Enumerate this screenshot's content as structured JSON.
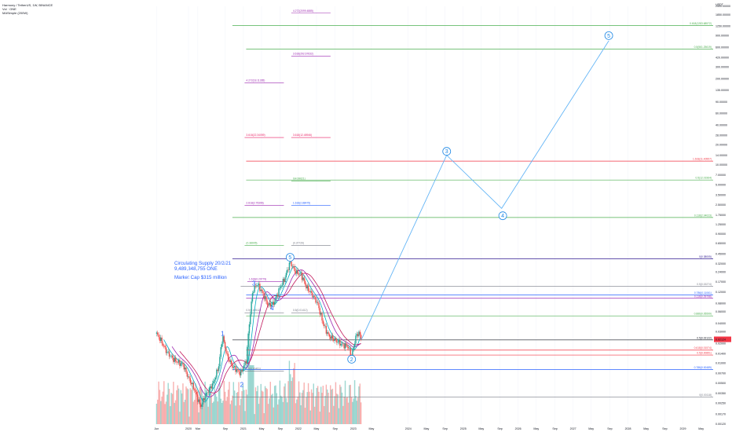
{
  "header": {
    "symbol": "Harmony / TetherUS, 1W, BINANCE",
    "vol": "Vol · ONE",
    "ma": "MASimple (200W)"
  },
  "annotations": {
    "supply_line1": "Circulating Supply 20/2/21",
    "supply_line2": "9,489,348,755 ONE",
    "market_cap": "Market Cap $315 million"
  },
  "colors": {
    "up": "#26a69a",
    "down": "#ef5350",
    "projection": "#64b5f6",
    "wave_label": "#2962ff",
    "ma": "#9c27b0",
    "ma_crimson": "#c2185b",
    "price_label": "#f23645"
  },
  "chart_data": {
    "type": "candlestick",
    "scale": "log",
    "currency": "USDT",
    "yticks": [
      "2500.00000",
      "1850.00000",
      "1250.00000",
      "900.00000",
      "600.00000",
      "420.00000",
      "300.00000",
      "200.00000",
      "135.00000",
      "90.00000",
      "60.00000",
      "40.00000",
      "28.00000",
      "20.00000",
      "14.00000",
      "10.00000",
      "7.00000",
      "5.00000",
      "3.50000",
      "2.50000",
      "1.75000",
      "1.25000",
      "0.90000",
      "0.65000",
      "0.45000",
      "0.32000",
      "0.24000",
      "0.17000",
      "0.12000",
      "0.08000",
      "0.06000",
      "0.04000",
      "0.03000",
      "0.02000",
      "0.01400",
      "0.01000",
      "0.00700",
      "0.00500",
      "0.00350",
      "0.00250",
      "0.00170",
      "0.00120"
    ],
    "ytick_values": [
      2500,
      1850,
      1250,
      900,
      600,
      420,
      300,
      200,
      135,
      90,
      60,
      40,
      28,
      20,
      14,
      10,
      7,
      5,
      3.5,
      2.5,
      1.75,
      1.25,
      0.9,
      0.65,
      0.45,
      0.32,
      0.24,
      0.17,
      0.12,
      0.08,
      0.06,
      0.04,
      0.03,
      0.02,
      0.014,
      0.01,
      0.007,
      0.005,
      0.0035,
      0.0025,
      0.0017,
      0.0012
    ],
    "xticks": [
      "Jun",
      "2020",
      "Mar",
      "Sep",
      "2021",
      "May",
      "Sep",
      "2022",
      "May",
      "Sep",
      "2023",
      "May",
      "2024",
      "May",
      "Sep",
      "2025",
      "May",
      "Sep",
      "2026",
      "May",
      "Sep",
      "2027",
      "May",
      "Sep",
      "2028",
      "May",
      "Sep",
      "2029",
      "May"
    ],
    "xtick_values": [
      2019.42,
      2020.0,
      2020.17,
      2020.67,
      2021.0,
      2021.33,
      2021.67,
      2022.0,
      2022.33,
      2022.67,
      2023.0,
      2023.33,
      2024.0,
      2024.33,
      2024.67,
      2025.0,
      2025.33,
      2025.67,
      2026.0,
      2026.33,
      2026.67,
      2027.0,
      2027.33,
      2027.67,
      2028.0,
      2028.33,
      2028.67,
      2029.0,
      2029.33
    ],
    "price_path": [
      [
        2019.42,
        0.028
      ],
      [
        2019.5,
        0.022
      ],
      [
        2019.6,
        0.015
      ],
      [
        2019.75,
        0.011
      ],
      [
        2019.9,
        0.0095
      ],
      [
        2020.0,
        0.006
      ],
      [
        2020.1,
        0.0042
      ],
      [
        2020.22,
        0.0022
      ],
      [
        2020.3,
        0.0032
      ],
      [
        2020.45,
        0.005
      ],
      [
        2020.55,
        0.009
      ],
      [
        2020.62,
        0.026
      ],
      [
        2020.7,
        0.013
      ],
      [
        2020.8,
        0.009
      ],
      [
        2020.95,
        0.007
      ],
      [
        2021.05,
        0.011
      ],
      [
        2021.1,
        0.035
      ],
      [
        2021.17,
        0.125
      ],
      [
        2021.25,
        0.16
      ],
      [
        2021.35,
        0.115
      ],
      [
        2021.45,
        0.075
      ],
      [
        2021.55,
        0.08
      ],
      [
        2021.65,
        0.13
      ],
      [
        2021.75,
        0.19
      ],
      [
        2021.85,
        0.34
      ],
      [
        2021.95,
        0.24
      ],
      [
        2022.05,
        0.22
      ],
      [
        2022.15,
        0.14
      ],
      [
        2022.25,
        0.11
      ],
      [
        2022.35,
        0.08
      ],
      [
        2022.45,
        0.04
      ],
      [
        2022.55,
        0.026
      ],
      [
        2022.65,
        0.023
      ],
      [
        2022.8,
        0.019
      ],
      [
        2022.9,
        0.018
      ],
      [
        2022.97,
        0.013
      ],
      [
        2023.05,
        0.026
      ],
      [
        2023.1,
        0.029
      ],
      [
        2023.15,
        0.023
      ]
    ],
    "projection": [
      [
        2023.15,
        0.023
      ],
      [
        2024.7,
        14.0
      ],
      [
        2025.7,
        2.2
      ],
      [
        2027.65,
        750.0
      ]
    ],
    "waves_blue": [
      {
        "label": "1",
        "x": 2020.62,
        "y": 0.026
      },
      {
        "label": "2",
        "x": 2020.97,
        "y": 0.0044
      },
      {
        "label": "3",
        "x": 2021.19,
        "y": 0.15
      },
      {
        "label": "4",
        "x": 2021.52,
        "y": 0.063
      },
      {
        "label": "5",
        "x": 2021.85,
        "y": 0.4
      },
      {
        "label": "2",
        "x": 2022.97,
        "y": 0.0115
      },
      {
        "label": "3",
        "x": 2024.7,
        "y": 16.0
      },
      {
        "label": "4",
        "x": 2025.72,
        "y": 1.7
      },
      {
        "label": "5",
        "x": 2027.65,
        "y": 900.0
      }
    ],
    "fib_levels": [
      {
        "label": "0.618(1283.68572)",
        "value": 1283,
        "x1": 2020.8,
        "color": "#4caf50"
      },
      {
        "label": "0.5(561.25619)",
        "value": 561,
        "x1": 2021.05,
        "color": "#4caf50"
      },
      {
        "label": "1.618(11.40957)",
        "value": 11.4,
        "x1": 2021.05,
        "color": "#f23645"
      },
      {
        "label": "0.5(12.01964)",
        "value": 5.9,
        "x1": 2021.05,
        "color": "#4caf50"
      },
      {
        "label": "0.118(2.04023)",
        "value": 1.6,
        "x1": 2020.8,
        "color": "#4caf50"
      },
      {
        "label": "0(0.38005)",
        "value": 0.38,
        "x1": 2020.8,
        "color": "#311b92"
      },
      {
        "label": "0.5(0.15274)",
        "value": 0.145,
        "x1": 2020.95,
        "color": "#787b86"
      },
      {
        "label": "0.786(0.11061)",
        "value": 0.108,
        "x1": 2021.05,
        "color": "#2962ff"
      },
      {
        "label": "0.118(0.09798)",
        "value": 0.096,
        "x1": 2021.05,
        "color": "#9c27b0"
      },
      {
        "label": "0.886(0.05599)",
        "value": 0.052,
        "x1": 2021.05,
        "color": "#4caf50"
      },
      {
        "label": "0.5(0.02122)",
        "value": 0.0225,
        "x1": 2020.8,
        "color": "#131722"
      },
      {
        "label": "0.618(0.01574)",
        "value": 0.0158,
        "x1": 2021.05,
        "color": "#f23645"
      },
      {
        "label": "0.5(0.00851)",
        "value": 0.0133,
        "x1": 2021.05,
        "color": "#f23645"
      },
      {
        "label": "0.786(0.00489)",
        "value": 0.008,
        "x1": 2020.8,
        "color": "#2962ff"
      },
      {
        "label": "0(0.00118)",
        "value": 0.0031,
        "x1": 2020.8,
        "color": "#787b86"
      }
    ],
    "fib_left_labels": [
      {
        "label": "4.272(2099.4885)",
        "value": 2050,
        "x": 2021.9,
        "color": "#9c27b0"
      },
      {
        "label": "3.618(292.67632)",
        "value": 460,
        "x": 2021.9,
        "color": "#9c27b0"
      },
      {
        "label": "4.272(18.11285)",
        "value": 180,
        "x": 2021.05,
        "color": "#9c27b0"
      },
      {
        "label": "3.618(22.34059)",
        "value": 27,
        "x": 2021.05,
        "color": "#e91e63"
      },
      {
        "label": "3.618(12.48946)",
        "value": 27,
        "x": 2021.9,
        "color": "#e91e63"
      },
      {
        "label": "0(4.99621)",
        "value": 5.9,
        "x": 2021.9,
        "color": "#4caf50"
      },
      {
        "label": "2.618(2.75396)",
        "value": 2.55,
        "x": 2021.05,
        "color": "#9c27b0"
      },
      {
        "label": "1.618(2.88475)",
        "value": 2.55,
        "x": 2021.9,
        "color": "#2962ff"
      },
      {
        "label": "(0.38005)",
        "value": 0.63,
        "x": 2021.05,
        "color": "#4caf50"
      },
      {
        "label": "(0.37729)",
        "value": 0.63,
        "x": 2021.9,
        "color": "#787b86"
      },
      {
        "label": "1.618(0.20779)",
        "value": 0.18,
        "x": 2021.1,
        "color": "#9c27b0"
      },
      {
        "label": "0.5(0.02612)",
        "value": 0.0605,
        "x": 2021.05,
        "color": "#787b86"
      },
      {
        "label": "0.5(0.01412)",
        "value": 0.0605,
        "x": 2021.9,
        "color": "#787b86"
      },
      {
        "label": "0.5(0.00451)",
        "value": 0.0079,
        "x": 2021.05,
        "color": "#787b86"
      }
    ],
    "last_price": {
      "label": "0.02124",
      "value": 0.0227
    }
  }
}
